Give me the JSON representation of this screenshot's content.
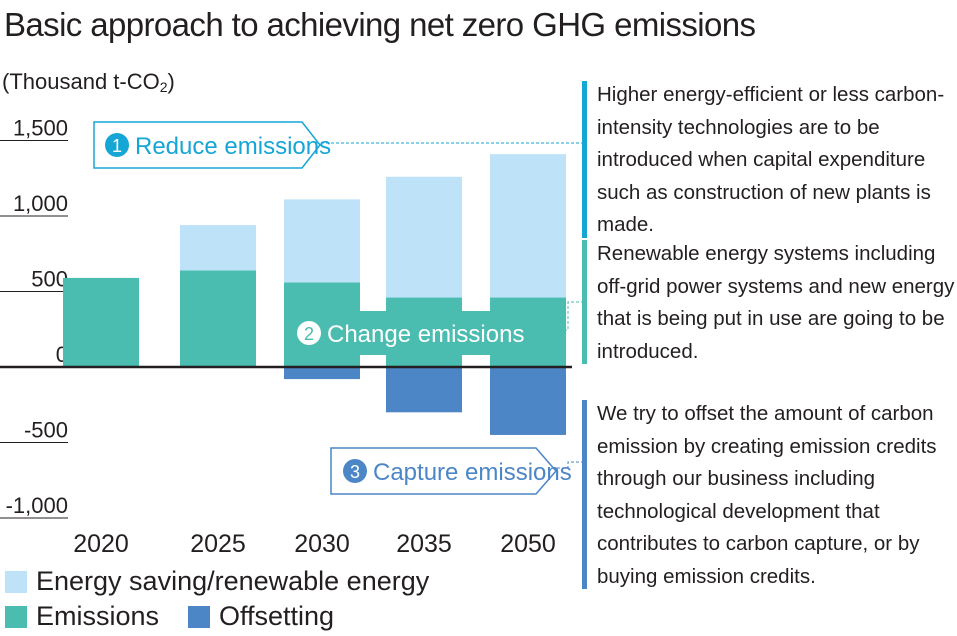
{
  "title": "Basic approach to achieving net zero GHG emissions",
  "unit": {
    "prefix": "(Thousand t-CO",
    "sub": "2",
    "suffix": ")"
  },
  "colors": {
    "energy_saving": "#bee3f8",
    "emissions": "#4bbcb0",
    "offsetting": "#4c86c6",
    "reduce_accent": "#16a6d6",
    "change_accent": "#4bbcb0",
    "capture_accent": "#4c86c6"
  },
  "chart_data": {
    "type": "bar",
    "stacked": true,
    "categories": [
      "2020",
      "2025",
      "2030",
      "2035",
      "2050"
    ],
    "series": [
      {
        "name": "Emissions",
        "values": [
          590,
          640,
          560,
          460,
          460
        ]
      },
      {
        "name": "Energy saving/renewable energy",
        "values": [
          0,
          300,
          550,
          800,
          950
        ]
      },
      {
        "name": "Offsetting",
        "values": [
          0,
          0,
          -80,
          -300,
          -450
        ]
      }
    ],
    "ylim": [
      -1000,
      1500
    ],
    "yticks": [
      "1,500",
      "1,000",
      "500",
      "0",
      "-500",
      "-1,000"
    ],
    "ytick_values": [
      1500,
      1000,
      500,
      0,
      -500,
      -1000
    ],
    "legend_position": "bottom"
  },
  "callouts": [
    {
      "num": "1",
      "label": "Reduce emissions"
    },
    {
      "num": "2",
      "label": "Change emissions"
    },
    {
      "num": "3",
      "label": "Capture emissions"
    }
  ],
  "notes": [
    "Higher energy-efficient or less carbon-intensity technologies are to be introduced when capital expenditure such as construction of new plants is made.",
    "Renewable energy systems including off-grid power systems and new energy that is being put in use are going to be introduced.",
    "We try to offset the amount of carbon emission by creating emission credits through our business including technological development that contributes to carbon capture, or by buying emission credits."
  ],
  "legend": {
    "energy_saving": "Energy saving/renewable energy",
    "emissions": "Emissions",
    "offsetting": "Offsetting"
  }
}
